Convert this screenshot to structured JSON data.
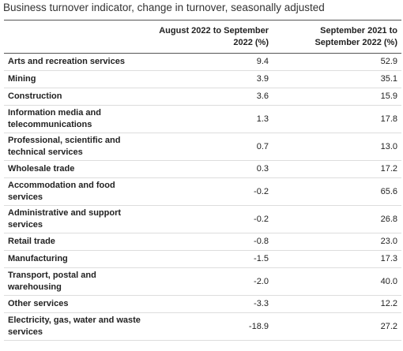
{
  "title": "Business turnover indicator, change in turnover, seasonally adjusted",
  "table": {
    "columns": [
      "August 2022 to September 2022 (%)",
      "September 2021 to September 2022 (%)"
    ],
    "rows": [
      [
        "Arts and recreation services",
        "9.4",
        "52.9"
      ],
      [
        "Mining",
        "3.9",
        "35.1"
      ],
      [
        "Construction",
        "3.6",
        "15.9"
      ],
      [
        "Information media and telecommunications",
        "1.3",
        "17.8"
      ],
      [
        "Professional, scientific and technical services",
        "0.7",
        "13.0"
      ],
      [
        "Wholesale trade",
        "0.3",
        "17.2"
      ],
      [
        "Accommodation and food services",
        "-0.2",
        "65.6"
      ],
      [
        "Administrative and support services",
        "-0.2",
        "26.8"
      ],
      [
        "Retail trade",
        "-0.8",
        "23.0"
      ],
      [
        "Manufacturing",
        "-1.5",
        "17.3"
      ],
      [
        "Transport, postal and warehousing",
        "-2.0",
        "40.0"
      ],
      [
        "Other services",
        "-3.3",
        "12.2"
      ],
      [
        "Electricity, gas, water and waste services",
        "-18.9",
        "27.2"
      ]
    ]
  }
}
